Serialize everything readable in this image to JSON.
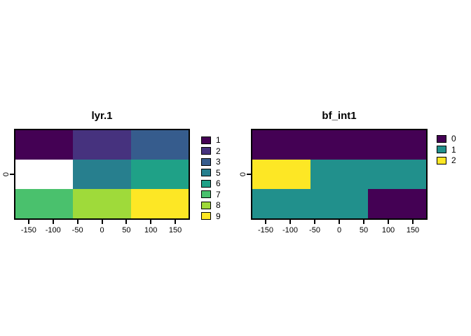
{
  "figure": {
    "background": "#FFFFFF",
    "na_color": "#FFFFFF",
    "border_color": "#000000"
  },
  "chart_data": [
    {
      "type": "heatmap",
      "title": "lyr.1",
      "xlabel": "",
      "ylabel": "",
      "x_range": [
        -180,
        180
      ],
      "y_range": [
        -90,
        90
      ],
      "x_ticks": [
        -150,
        -100,
        -50,
        0,
        50,
        100,
        150
      ],
      "y_ticks": [
        0
      ],
      "rows": 3,
      "cols": 3,
      "values": [
        [
          1,
          2,
          3
        ],
        [
          null,
          5,
          6
        ],
        [
          7,
          8,
          9
        ]
      ],
      "na_color": "#FFFFFF",
      "palette": {
        "1": "#440154",
        "2": "#46327E",
        "3": "#365C8D",
        "5": "#277F8E",
        "6": "#1FA187",
        "7": "#4AC16D",
        "8": "#9FDA3A",
        "9": "#FDE725"
      },
      "legend": {
        "position": "right",
        "labels": [
          "1",
          "2",
          "3",
          "5",
          "6",
          "7",
          "8",
          "9"
        ],
        "colors": [
          "#440154",
          "#46327E",
          "#365C8D",
          "#277F8E",
          "#1FA187",
          "#4AC16D",
          "#9FDA3A",
          "#FDE725"
        ]
      },
      "grid": false
    },
    {
      "type": "heatmap",
      "title": "bf_int1",
      "xlabel": "",
      "ylabel": "",
      "x_range": [
        -180,
        180
      ],
      "y_range": [
        -90,
        90
      ],
      "x_ticks": [
        -150,
        -100,
        -50,
        0,
        50,
        100,
        150
      ],
      "y_ticks": [
        0
      ],
      "rows": 3,
      "cols": 3,
      "values": [
        [
          0,
          0,
          0
        ],
        [
          2,
          1,
          1
        ],
        [
          1,
          1,
          0
        ]
      ],
      "na_color": "#FFFFFF",
      "palette": {
        "0": "#440154",
        "1": "#21908C",
        "2": "#FDE725"
      },
      "legend": {
        "position": "right",
        "labels": [
          "0",
          "1",
          "2"
        ],
        "colors": [
          "#440154",
          "#21908C",
          "#FDE725"
        ]
      },
      "grid": false
    }
  ]
}
